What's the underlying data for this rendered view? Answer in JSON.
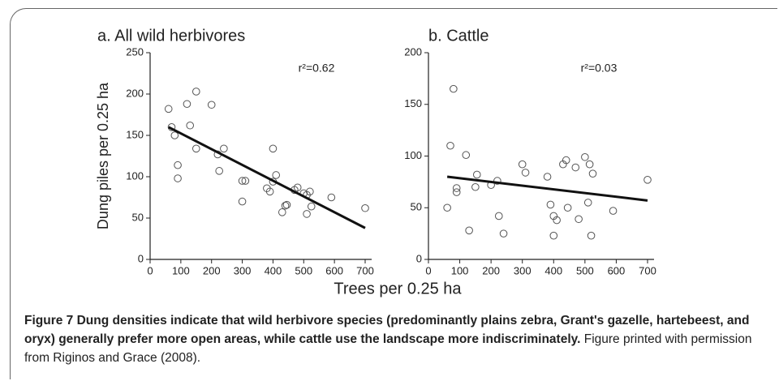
{
  "figure": {
    "xlabel": "Trees per 0.25 ha",
    "caption_title": "Figure 7 Dung densities indicate that wild herbivore species (predominantly plains zebra, Grant's gazelle, hartebeest, and oryx) generally prefer more open areas, while cattle use the landscape more indiscriminately.",
    "caption_text": "Figure printed with permission from Riginos and Grace (2008)."
  },
  "chart_data": [
    {
      "type": "scatter",
      "title": "a. All wild herbivores",
      "ylabel": "Dung piles per 0.25 ha",
      "annotation": "r²=0.62",
      "x": [
        60,
        70,
        80,
        90,
        90,
        120,
        130,
        150,
        150,
        200,
        220,
        225,
        240,
        300,
        300,
        310,
        380,
        390,
        400,
        400,
        410,
        430,
        440,
        445,
        470,
        480,
        500,
        510,
        510,
        520,
        525,
        590,
        700
      ],
      "y": [
        182,
        160,
        150,
        114,
        98,
        188,
        162,
        203,
        134,
        187,
        127,
        107,
        134,
        95,
        70,
        95,
        86,
        82,
        94,
        134,
        102,
        57,
        65,
        66,
        84,
        87,
        80,
        55,
        78,
        82,
        64,
        75,
        62
      ],
      "fit": {
        "x": [
          60,
          700
        ],
        "y": [
          160,
          38
        ]
      },
      "xlim": [
        0,
        700
      ],
      "xticks": [
        0,
        100,
        200,
        300,
        400,
        500,
        600,
        700
      ],
      "ylim": [
        0,
        250
      ],
      "yticks": [
        0,
        50,
        100,
        150,
        200,
        250
      ]
    },
    {
      "type": "scatter",
      "title": "b. Cattle",
      "annotation": "r²=0.03",
      "x": [
        60,
        70,
        80,
        90,
        90,
        120,
        130,
        150,
        155,
        200,
        220,
        225,
        240,
        300,
        310,
        380,
        390,
        400,
        400,
        410,
        430,
        440,
        445,
        470,
        480,
        500,
        510,
        515,
        520,
        525,
        590,
        700
      ],
      "y": [
        50,
        110,
        165,
        65,
        69,
        101,
        28,
        70,
        82,
        72,
        76,
        42,
        25,
        92,
        84,
        80,
        53,
        42,
        23,
        38,
        92,
        96,
        50,
        89,
        39,
        99,
        55,
        92,
        23,
        83,
        47,
        77
      ],
      "fit": {
        "x": [
          60,
          700
        ],
        "y": [
          80,
          57
        ]
      },
      "xlim": [
        0,
        700
      ],
      "xticks": [
        0,
        100,
        200,
        300,
        400,
        500,
        600,
        700
      ],
      "ylim": [
        0,
        200
      ],
      "yticks": [
        0,
        50,
        100,
        150,
        200
      ]
    }
  ]
}
